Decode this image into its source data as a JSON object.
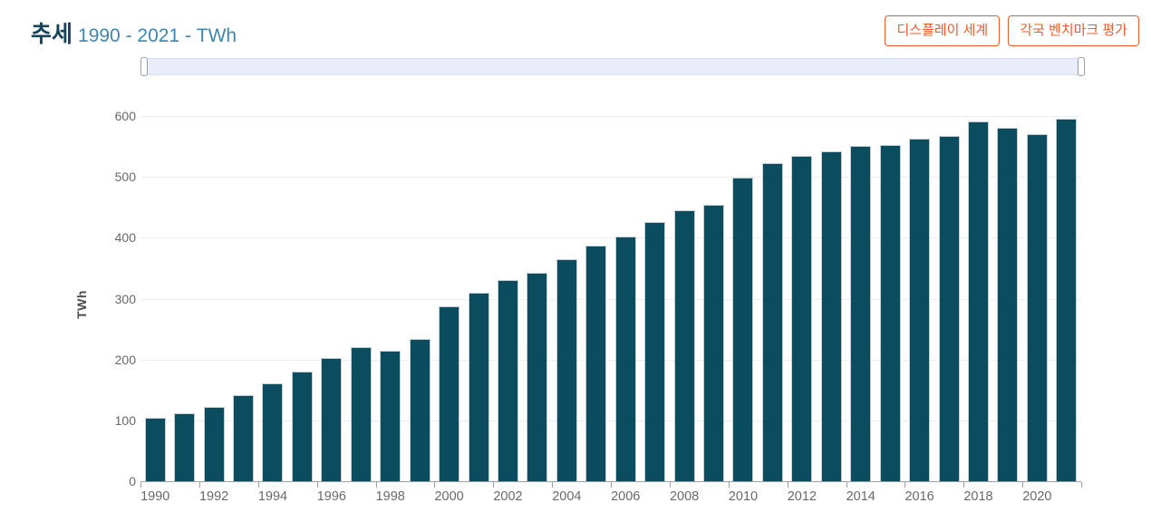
{
  "header": {
    "title_bold": "추세",
    "title_range": "1990 - 2021 - TWh",
    "buttons": [
      {
        "label": "디스플레이 세계"
      },
      {
        "label": "각국 벤치마크 평가"
      }
    ]
  },
  "colors": {
    "bar_fill": "#0b4d5e",
    "title_accent": "#16455a",
    "title_secondary": "#3f85ad",
    "button_accent": "#f15a2d",
    "grid": "#e9edf4",
    "axis": "#9aa0a8",
    "tick_text": "#66696e",
    "navigator_fill": "#e8edf9",
    "navigator_border": "#d3dcf2"
  },
  "chart_data": {
    "type": "bar",
    "title": "추세 1990 - 2021 - TWh",
    "xlabel": "",
    "ylabel": "TWh",
    "ylim": [
      0,
      600
    ],
    "ytick_step": 100,
    "yticks": [
      0,
      100,
      200,
      300,
      400,
      500,
      600
    ],
    "grid": true,
    "legend": false,
    "x": [
      1990,
      1991,
      1992,
      1993,
      1994,
      1995,
      1996,
      1997,
      1998,
      1999,
      2000,
      2001,
      2002,
      2003,
      2004,
      2005,
      2006,
      2007,
      2008,
      2009,
      2010,
      2011,
      2012,
      2013,
      2014,
      2015,
      2016,
      2017,
      2018,
      2019,
      2020,
      2021
    ],
    "values": [
      104,
      111,
      122,
      141,
      161,
      180,
      203,
      220,
      214,
      234,
      288,
      309,
      330,
      343,
      365,
      387,
      402,
      426,
      445,
      454,
      499,
      523,
      535,
      542,
      551,
      552,
      563,
      567,
      591,
      581,
      570,
      596
    ],
    "xtick_labels": [
      "1990",
      "1992",
      "1994",
      "1996",
      "1998",
      "2000",
      "2002",
      "2004",
      "2006",
      "2008",
      "2010",
      "2012",
      "2014",
      "2016",
      "2018",
      "2020"
    ]
  }
}
